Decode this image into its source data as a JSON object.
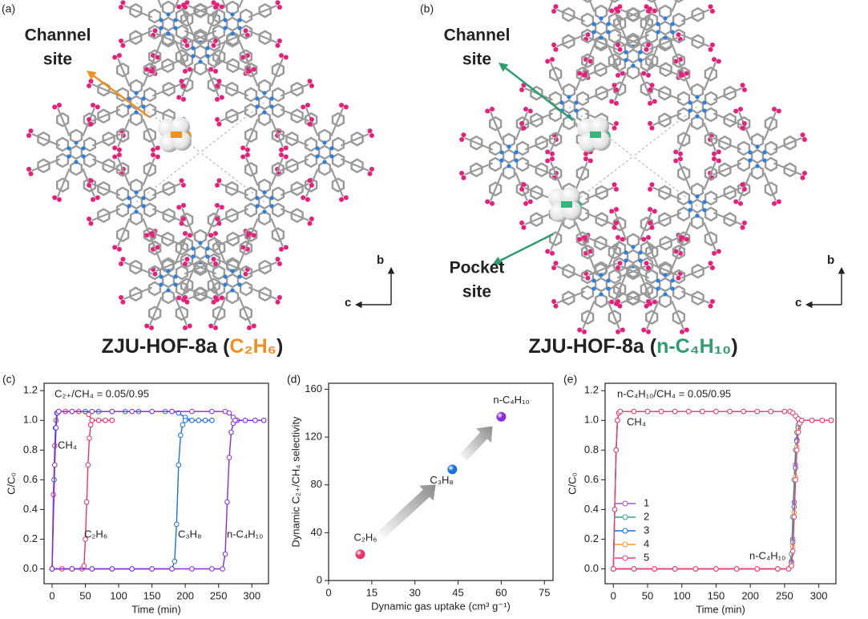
{
  "panels": [
    {
      "letter": "(a)",
      "site_labels": [
        {
          "lines": [
            "Channel",
            "site"
          ],
          "color": "#f0901e"
        }
      ],
      "axes": [
        "b",
        "c"
      ],
      "title": {
        "prefix": "ZJU-HOF-8a (",
        "guest": "C₂H₆",
        "suffix": ")",
        "color": "#f0901e"
      }
    },
    {
      "letter": "(b)",
      "site_labels": [
        {
          "lines": [
            "Channel",
            "site"
          ],
          "color": "#2e9e6e"
        },
        {
          "lines": [
            "Pocket",
            "site"
          ],
          "color": "#2e9e6e"
        }
      ],
      "axes": [
        "b",
        "c"
      ],
      "title": {
        "prefix": "ZJU-HOF-8a (",
        "guest": "n-C₄H₁₀",
        "suffix": ")",
        "color": "#2e9e6e"
      }
    }
  ],
  "chart_data": [
    {
      "type": "line",
      "letter": "(c)",
      "xlabel": "Time (min)",
      "ylabel": "C/C₀",
      "xlim": [
        -12,
        325
      ],
      "xticks": [
        0,
        50,
        100,
        150,
        200,
        250,
        300
      ],
      "ylim": [
        -0.1,
        1.25
      ],
      "yticks": [
        {
          "value": 0,
          "label": "0.0"
        },
        {
          "value": 0.2,
          "label": "0.2"
        },
        {
          "value": 0.4,
          "label": "0.4"
        },
        {
          "value": 0.6,
          "label": "0.6"
        },
        {
          "value": 0.8,
          "label": "0.8"
        },
        {
          "value": 1,
          "label": "1.0"
        },
        {
          "value": 1.2,
          "label": "1.2"
        }
      ],
      "annotations": [
        {
          "text": "C₂₊/CH₄ = 0.05/0.95",
          "color": "#222"
        },
        {
          "text": "CH₄",
          "color": "#222"
        }
      ],
      "series": [
        {
          "name": "C₂H₆",
          "color": "#e8336b",
          "ch4": {
            "x": [
              0,
              2,
              4,
              6,
              8,
              10,
              20,
              30,
              40,
              50,
              55,
              60,
              70,
              80,
              90
            ],
            "values": [
              0,
              0.5,
              0.83,
              1.0,
              1.05,
              1.06,
              1.06,
              1.06,
              1.06,
              1.06,
              1.04,
              1.0,
              1.0,
              1.0,
              1.0
            ]
          },
          "gas": {
            "x": [
              0,
              15,
              30,
              45,
              48,
              50,
              52,
              54,
              56,
              58,
              60,
              70,
              80,
              90
            ],
            "values": [
              0,
              0,
              0,
              0,
              0.02,
              0.2,
              0.45,
              0.7,
              0.88,
              0.97,
              1.0,
              1.0,
              1.0,
              1.0
            ]
          }
        },
        {
          "name": "C₃H₈",
          "color": "#1a73d9",
          "ch4": {
            "x": [
              0,
              3,
              5,
              7,
              10,
              30,
              50,
              70,
              90,
              110,
              130,
              150,
              170,
              180,
              190,
              200,
              210,
              220,
              230,
              240
            ],
            "values": [
              0,
              0.6,
              0.95,
              1.05,
              1.06,
              1.06,
              1.06,
              1.06,
              1.06,
              1.06,
              1.06,
              1.06,
              1.06,
              1.06,
              1.05,
              1.02,
              1.0,
              1.0,
              1.0,
              1.0
            ]
          },
          "gas": {
            "x": [
              0,
              30,
              60,
              90,
              120,
              150,
              180,
              184,
              187,
              190,
              193,
              196,
              200,
              210,
              220,
              230,
              240
            ],
            "values": [
              0,
              0,
              0,
              0,
              0,
              0,
              0,
              0.05,
              0.3,
              0.7,
              0.9,
              0.97,
              1.0,
              1.0,
              1.0,
              1.0,
              1.0
            ]
          }
        },
        {
          "name": "n-C₄H₁₀",
          "color": "#8a2be2",
          "ch4": {
            "x": [
              0,
              4,
              6,
              8,
              10,
              30,
              60,
              90,
              120,
              150,
              180,
              210,
              240,
              260,
              266,
              272,
              278,
              290,
              305,
              318
            ],
            "values": [
              0,
              0.7,
              0.95,
              1.05,
              1.06,
              1.06,
              1.06,
              1.06,
              1.06,
              1.06,
              1.06,
              1.06,
              1.06,
              1.06,
              1.05,
              1.02,
              1.0,
              1.0,
              1.0,
              1.0
            ]
          },
          "gas": {
            "x": [
              0,
              30,
              60,
              90,
              120,
              150,
              180,
              210,
              240,
              256,
              260,
              263,
              266,
              269,
              272,
              275,
              290,
              305,
              318
            ],
            "values": [
              0,
              0,
              0,
              0,
              0,
              0,
              0,
              0,
              0,
              0,
              0.1,
              0.45,
              0.75,
              0.92,
              0.98,
              1.0,
              1.0,
              1.0,
              1.0
            ]
          }
        }
      ]
    },
    {
      "type": "scatter",
      "letter": "(d)",
      "xlabel": "Dynamic gas uptake (cm³ g⁻¹)",
      "ylabel": "Dynamic C₂₊/CH₄ selectivity",
      "xlim": [
        0,
        78
      ],
      "xticks": [
        0,
        15,
        30,
        45,
        60,
        75
      ],
      "ylim": [
        0,
        165
      ],
      "yticks": [
        0,
        40,
        80,
        120,
        160
      ],
      "categories": [
        "C₂H₆",
        "C₃H₈",
        "n-C₄H₁₀"
      ],
      "x": [
        11,
        43,
        60
      ],
      "values": [
        22,
        93,
        137
      ],
      "colors": [
        "#e8336b",
        "#1a73d9",
        "#8a2be2"
      ]
    },
    {
      "type": "line",
      "letter": "(e)",
      "xlabel": "Time (min)",
      "ylabel": "C/C₀",
      "xlim": [
        -12,
        325
      ],
      "xticks": [
        0,
        50,
        100,
        150,
        200,
        250,
        300
      ],
      "ylim": [
        -0.1,
        1.25
      ],
      "yticks": [
        {
          "value": 0,
          "label": "0.0"
        },
        {
          "value": 0.2,
          "label": "0.2"
        },
        {
          "value": 0.4,
          "label": "0.4"
        },
        {
          "value": 0.6,
          "label": "0.6"
        },
        {
          "value": 0.8,
          "label": "0.8"
        },
        {
          "value": 1,
          "label": "1.0"
        },
        {
          "value": 1.2,
          "label": "1.2"
        }
      ],
      "legend": "lower left",
      "annotations": [
        {
          "text": "n-C₄H₁₀/CH₄ = 0.05/0.95",
          "color": "#222"
        },
        {
          "text": "CH₄",
          "color": "#222"
        },
        {
          "text": "n-C₄H₁₀",
          "color": "#8a2be2"
        }
      ],
      "series": [
        {
          "name": "1",
          "color": "#9b4dff",
          "ch4": {
            "x": [
              0,
              2,
              4,
              6,
              8,
              10,
              30,
              50,
              70,
              90,
              110,
              130,
              150,
              170,
              190,
              210,
              230,
              250,
              258,
              262,
              266,
              270,
              275,
              290,
              305,
              318
            ],
            "values": [
              0,
              0.4,
              0.8,
              1.0,
              1.05,
              1.06,
              1.06,
              1.06,
              1.06,
              1.06,
              1.06,
              1.06,
              1.06,
              1.06,
              1.06,
              1.06,
              1.06,
              1.06,
              1.06,
              1.05,
              1.03,
              1.01,
              1.0,
              1.0,
              1.0,
              1.0
            ]
          },
          "gas": {
            "x": [
              0,
              30,
              60,
              90,
              120,
              150,
              180,
              210,
              240,
              256,
              260,
              262,
              264,
              266,
              268,
              270,
              272,
              275,
              290,
              305,
              318
            ],
            "values": [
              0,
              0,
              0,
              0,
              0,
              0,
              0,
              0,
              0,
              0,
              0.05,
              0.2,
              0.45,
              0.7,
              0.87,
              0.95,
              0.99,
              1.0,
              1.0,
              1.0,
              1.0
            ]
          }
        },
        {
          "name": "2",
          "color": "#3aa17e",
          "ch4": {
            "x": [
              0,
              2,
              4,
              6,
              8,
              10,
              30,
              50,
              70,
              90,
              110,
              130,
              150,
              170,
              190,
              210,
              230,
              250,
              258,
              262,
              266,
              270,
              275,
              290,
              305,
              318
            ],
            "values": [
              0,
              0.4,
              0.8,
              1.0,
              1.05,
              1.06,
              1.06,
              1.06,
              1.06,
              1.06,
              1.06,
              1.06,
              1.06,
              1.06,
              1.06,
              1.06,
              1.06,
              1.06,
              1.06,
              1.05,
              1.03,
              1.01,
              1.0,
              1.0,
              1.0,
              1.0
            ]
          },
          "gas": {
            "x": [
              0,
              30,
              60,
              90,
              120,
              150,
              180,
              210,
              240,
              256,
              260,
              262,
              264,
              266,
              268,
              270,
              272,
              275,
              290,
              305,
              318
            ],
            "values": [
              0,
              0,
              0,
              0,
              0,
              0,
              0,
              0,
              0,
              0,
              0.1,
              0.35,
              0.6,
              0.8,
              0.92,
              0.97,
              1.0,
              1.0,
              1.0,
              1.0,
              1.0
            ]
          }
        },
        {
          "name": "3",
          "color": "#1f6fd0",
          "ch4": {
            "x": [
              0,
              2,
              4,
              6,
              8,
              10,
              30,
              50,
              70,
              90,
              110,
              130,
              150,
              170,
              190,
              210,
              230,
              250,
              258,
              262,
              266,
              270,
              275,
              290,
              305,
              318
            ],
            "values": [
              0,
              0.4,
              0.8,
              1.0,
              1.05,
              1.06,
              1.06,
              1.06,
              1.06,
              1.06,
              1.06,
              1.06,
              1.06,
              1.06,
              1.06,
              1.06,
              1.06,
              1.06,
              1.06,
              1.05,
              1.03,
              1.01,
              1.0,
              1.0,
              1.0,
              1.0
            ]
          },
          "gas": {
            "x": [
              0,
              30,
              60,
              90,
              120,
              150,
              180,
              210,
              240,
              256,
              260,
              262,
              264,
              266,
              268,
              270,
              272,
              275,
              290,
              305,
              318
            ],
            "values": [
              0,
              0,
              0,
              0,
              0,
              0,
              0,
              0,
              0,
              0,
              0.04,
              0.18,
              0.42,
              0.68,
              0.86,
              0.95,
              0.99,
              1.0,
              1.0,
              1.0,
              1.0
            ]
          }
        },
        {
          "name": "4",
          "color": "#f29a2e",
          "ch4": {
            "x": [
              0,
              2,
              4,
              6,
              8,
              10,
              30,
              50,
              70,
              90,
              110,
              130,
              150,
              170,
              190,
              210,
              230,
              250,
              258,
              262,
              266,
              270,
              275,
              290,
              305,
              318
            ],
            "values": [
              0,
              0.4,
              0.8,
              1.0,
              1.05,
              1.06,
              1.06,
              1.06,
              1.06,
              1.06,
              1.06,
              1.06,
              1.06,
              1.06,
              1.06,
              1.06,
              1.06,
              1.06,
              1.06,
              1.05,
              1.03,
              1.01,
              1.0,
              1.0,
              1.0,
              1.0
            ]
          },
          "gas": {
            "x": [
              0,
              30,
              60,
              90,
              120,
              150,
              180,
              210,
              240,
              256,
              260,
              262,
              264,
              266,
              268,
              270,
              272,
              275,
              290,
              305,
              318
            ],
            "values": [
              0,
              0,
              0,
              0,
              0,
              0,
              0,
              0,
              0,
              0,
              0.03,
              0.15,
              0.38,
              0.62,
              0.82,
              0.93,
              0.98,
              1.0,
              1.0,
              1.0,
              1.0
            ]
          }
        },
        {
          "name": "5",
          "color": "#ef3f78",
          "ch4": {
            "x": [
              0,
              2,
              4,
              6,
              8,
              10,
              30,
              50,
              70,
              90,
              110,
              130,
              150,
              170,
              190,
              210,
              230,
              250,
              258,
              262,
              266,
              270,
              275,
              290,
              305,
              318
            ],
            "values": [
              0,
              0.4,
              0.8,
              1.0,
              1.05,
              1.06,
              1.06,
              1.06,
              1.06,
              1.06,
              1.06,
              1.06,
              1.06,
              1.06,
              1.06,
              1.06,
              1.06,
              1.06,
              1.06,
              1.05,
              1.03,
              1.01,
              1.0,
              1.0,
              1.0,
              1.0
            ]
          },
          "gas": {
            "x": [
              0,
              30,
              60,
              90,
              120,
              150,
              180,
              210,
              240,
              256,
              260,
              262,
              264,
              266,
              268,
              270,
              272,
              275,
              290,
              305,
              318
            ],
            "values": [
              0,
              0,
              0,
              0,
              0,
              0,
              0,
              0,
              0,
              0,
              0.02,
              0.12,
              0.35,
              0.6,
              0.8,
              0.92,
              0.98,
              1.0,
              1.0,
              1.0,
              1.0
            ]
          }
        }
      ]
    }
  ]
}
